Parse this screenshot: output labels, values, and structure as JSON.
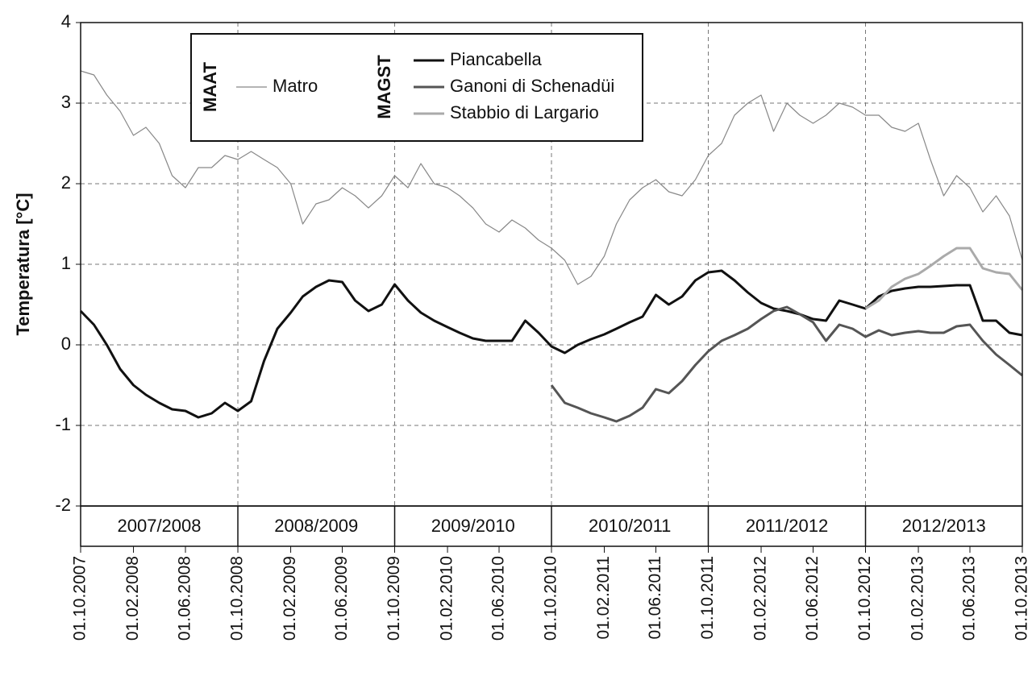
{
  "chart_data": {
    "type": "line",
    "y_label": "Temperatura [°C]",
    "x": [
      "01.10.2007",
      "01.11.2007",
      "01.12.2007",
      "01.01.2008",
      "01.02.2008",
      "01.03.2008",
      "01.04.2008",
      "01.05.2008",
      "01.06.2008",
      "01.07.2008",
      "01.08.2008",
      "01.09.2008",
      "01.10.2008",
      "01.11.2008",
      "01.12.2008",
      "01.01.2009",
      "01.02.2009",
      "01.03.2009",
      "01.04.2009",
      "01.05.2009",
      "01.06.2009",
      "01.07.2009",
      "01.08.2009",
      "01.09.2009",
      "01.10.2009",
      "01.11.2009",
      "01.12.2009",
      "01.01.2010",
      "01.02.2010",
      "01.03.2010",
      "01.04.2010",
      "01.05.2010",
      "01.06.2010",
      "01.07.2010",
      "01.08.2010",
      "01.09.2010",
      "01.10.2010",
      "01.11.2010",
      "01.12.2010",
      "01.01.2011",
      "01.02.2011",
      "01.03.2011",
      "01.04.2011",
      "01.05.2011",
      "01.06.2011",
      "01.07.2011",
      "01.08.2011",
      "01.09.2011",
      "01.10.2011",
      "01.11.2011",
      "01.12.2011",
      "01.01.2012",
      "01.02.2012",
      "01.03.2012",
      "01.04.2012",
      "01.05.2012",
      "01.06.2012",
      "01.07.2012",
      "01.08.2012",
      "01.09.2012",
      "01.10.2012",
      "01.11.2012",
      "01.12.2012",
      "01.01.2013",
      "01.02.2013",
      "01.03.2013",
      "01.04.2013",
      "01.05.2013",
      "01.06.2013",
      "01.07.2013",
      "01.08.2013",
      "01.09.2013",
      "01.10.2013"
    ],
    "series": [
      {
        "name": "Matro",
        "group": 0,
        "color": "#888888",
        "width": 1.2,
        "values": [
          3.4,
          3.35,
          3.1,
          2.9,
          2.6,
          2.7,
          2.5,
          2.1,
          1.95,
          2.2,
          2.2,
          2.35,
          2.3,
          2.4,
          2.3,
          2.2,
          2.0,
          1.5,
          1.75,
          1.8,
          1.95,
          1.85,
          1.7,
          1.85,
          2.1,
          1.95,
          2.25,
          2.0,
          1.95,
          1.85,
          1.7,
          1.5,
          1.4,
          1.55,
          1.45,
          1.3,
          1.2,
          1.05,
          0.75,
          0.85,
          1.1,
          1.5,
          1.8,
          1.95,
          2.05,
          1.9,
          1.85,
          2.05,
          2.35,
          2.5,
          2.85,
          3.0,
          3.1,
          2.65,
          3.0,
          2.85,
          2.75,
          2.85,
          3.0,
          2.95,
          2.85,
          2.85,
          2.7,
          2.65,
          2.75,
          2.3,
          1.85,
          2.1,
          1.95,
          1.65,
          1.85,
          1.6,
          1.05
        ]
      },
      {
        "name": "Piancabella",
        "group": 1,
        "color": "#111111",
        "width": 3,
        "values": [
          0.42,
          0.25,
          0.0,
          -0.3,
          -0.5,
          -0.62,
          -0.72,
          -0.8,
          -0.82,
          -0.9,
          -0.85,
          -0.72,
          -0.82,
          -0.7,
          -0.2,
          0.2,
          0.4,
          0.6,
          0.72,
          0.8,
          0.78,
          0.55,
          0.42,
          0.5,
          0.75,
          0.55,
          0.4,
          0.3,
          0.22,
          0.15,
          0.08,
          0.05,
          0.05,
          0.05,
          0.3,
          0.15,
          -0.02,
          -0.1,
          0.0,
          0.07,
          0.13,
          0.2,
          0.28,
          0.35,
          0.62,
          0.5,
          0.6,
          0.8,
          0.9,
          0.92,
          0.8,
          0.65,
          0.52,
          0.45,
          0.42,
          0.38,
          0.32,
          0.3,
          0.55,
          0.5,
          0.45,
          0.6,
          0.67,
          0.7,
          0.72,
          0.72,
          0.73,
          0.74,
          0.74,
          0.3,
          0.3,
          0.15,
          0.12
        ]
      },
      {
        "name": "Ganoni di Schenadüi",
        "group": 1,
        "color": "#555555",
        "width": 3,
        "values": [
          null,
          null,
          null,
          null,
          null,
          null,
          null,
          null,
          null,
          null,
          null,
          null,
          null,
          null,
          null,
          null,
          null,
          null,
          null,
          null,
          null,
          null,
          null,
          null,
          null,
          null,
          null,
          null,
          null,
          null,
          null,
          null,
          null,
          null,
          null,
          null,
          -0.5,
          -0.72,
          -0.78,
          -0.85,
          -0.9,
          -0.95,
          -0.88,
          -0.78,
          -0.55,
          -0.6,
          -0.45,
          -0.25,
          -0.08,
          0.05,
          0.12,
          0.2,
          0.32,
          0.42,
          0.47,
          0.38,
          0.28,
          0.05,
          0.25,
          0.2,
          0.1,
          0.18,
          0.12,
          0.15,
          0.17,
          0.15,
          0.15,
          0.23,
          0.25,
          0.05,
          -0.12,
          -0.25,
          -0.38
        ]
      },
      {
        "name": "Stabbio di Largario",
        "group": 1,
        "color": "#aaaaaa",
        "width": 3,
        "values": [
          null,
          null,
          null,
          null,
          null,
          null,
          null,
          null,
          null,
          null,
          null,
          null,
          null,
          null,
          null,
          null,
          null,
          null,
          null,
          null,
          null,
          null,
          null,
          null,
          null,
          null,
          null,
          null,
          null,
          null,
          null,
          null,
          null,
          null,
          null,
          null,
          null,
          null,
          null,
          null,
          null,
          null,
          null,
          null,
          null,
          null,
          null,
          null,
          null,
          null,
          null,
          null,
          null,
          null,
          null,
          null,
          null,
          null,
          null,
          null,
          0.45,
          0.55,
          0.72,
          0.82,
          0.88,
          0.98,
          1.1,
          1.2,
          1.2,
          0.95,
          0.9,
          0.88,
          0.68
        ]
      }
    ],
    "legend_groups": [
      "MAAT",
      "MAGST"
    ],
    "seasons": [
      "2007/2008",
      "2008/2009",
      "2009/2010",
      "2010/2011",
      "2011/2012",
      "2012/2013"
    ],
    "xlim": [
      "01.10.2007",
      "01.10.2013"
    ],
    "xticks": [
      "01.10.2007",
      "01.02.2008",
      "01.06.2008",
      "01.10.2008",
      "01.02.2009",
      "01.06.2009",
      "01.10.2009",
      "01.02.2010",
      "01.06.2010",
      "01.10.2010",
      "01.02.2011",
      "01.06.2011",
      "01.10.2011",
      "01.02.2012",
      "01.06.2012",
      "01.10.2012",
      "01.02.2013",
      "01.06.2013",
      "01.10.2013"
    ],
    "ylim": [
      -2,
      4
    ],
    "yticks": [
      -2,
      -1,
      0,
      1,
      2,
      3,
      4
    ],
    "grid": true
  }
}
